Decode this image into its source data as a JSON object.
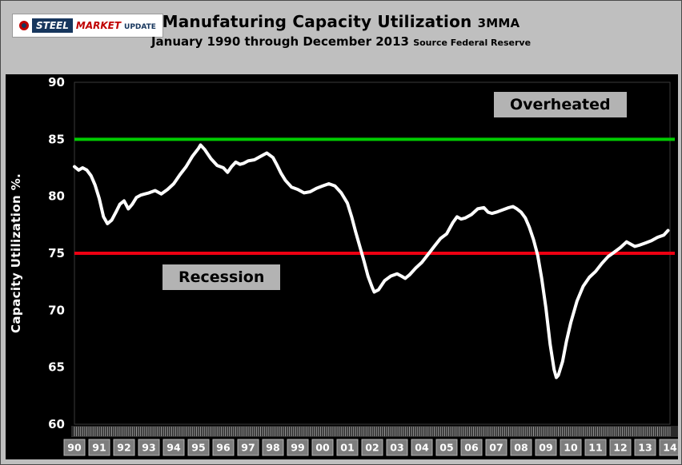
{
  "logo": {
    "steel": "STEEL",
    "market": "MARKET",
    "update": "UPDATE"
  },
  "header": {
    "title": "Manufaturing Capacity Utilization",
    "title_suffix": "3MMA",
    "subtitle": "January 1990 through December 2013",
    "subtitle_suffix": "Source Federal Reserve"
  },
  "colors": {
    "background": "#bfbfbf",
    "plot_background": "#000000",
    "series": "#ffffff",
    "overheated_line": "#00cc00",
    "recession_line": "#ee0012",
    "tick_text": "#ffffff",
    "annotation_box": "#b3b3b3"
  },
  "chart_data": {
    "type": "line",
    "title": "Manufaturing Capacity Utilization 3MMA",
    "subtitle": "January 1990 through December 2013 Source Federal Reserve",
    "xlabel": "",
    "ylabel": "Capacity Utilization %.",
    "ylim": [
      60,
      90
    ],
    "yticks": [
      90,
      85,
      80,
      75,
      70,
      65,
      60
    ],
    "x_range": [
      1990,
      2014
    ],
    "xticks": [
      "90",
      "91",
      "92",
      "93",
      "94",
      "95",
      "96",
      "97",
      "98",
      "99",
      "00",
      "01",
      "02",
      "03",
      "04",
      "05",
      "06",
      "07",
      "08",
      "09",
      "10",
      "11",
      "12",
      "13",
      "14"
    ],
    "grid": false,
    "legend": "none",
    "reference_lines": [
      {
        "value": 85,
        "color": "#00cc00",
        "label": "Overheated"
      },
      {
        "value": 75,
        "color": "#ee0012",
        "label": "Recession"
      }
    ],
    "annotations": [
      {
        "text": "Overheated",
        "position": "above green line, upper right"
      },
      {
        "text": "Recession",
        "position": "below red line, left-center"
      }
    ],
    "series": [
      {
        "name": "Manufacturing Capacity Utilization 3MMA",
        "color": "#ffffff",
        "points": [
          [
            1990.0,
            82.6
          ],
          [
            1990.17,
            82.3
          ],
          [
            1990.33,
            82.5
          ],
          [
            1990.5,
            82.3
          ],
          [
            1990.67,
            81.8
          ],
          [
            1990.83,
            81.0
          ],
          [
            1991.0,
            79.8
          ],
          [
            1991.17,
            78.2
          ],
          [
            1991.33,
            77.6
          ],
          [
            1991.5,
            77.9
          ],
          [
            1991.67,
            78.6
          ],
          [
            1991.83,
            79.3
          ],
          [
            1992.0,
            79.6
          ],
          [
            1992.17,
            78.9
          ],
          [
            1992.33,
            79.3
          ],
          [
            1992.5,
            79.9
          ],
          [
            1992.67,
            80.1
          ],
          [
            1992.83,
            80.2
          ],
          [
            1993.0,
            80.3
          ],
          [
            1993.25,
            80.5
          ],
          [
            1993.5,
            80.2
          ],
          [
            1993.75,
            80.6
          ],
          [
            1994.0,
            81.1
          ],
          [
            1994.25,
            81.9
          ],
          [
            1994.5,
            82.6
          ],
          [
            1994.75,
            83.5
          ],
          [
            1995.0,
            84.2
          ],
          [
            1995.08,
            84.5
          ],
          [
            1995.25,
            84.1
          ],
          [
            1995.5,
            83.3
          ],
          [
            1995.75,
            82.7
          ],
          [
            1996.0,
            82.5
          ],
          [
            1996.17,
            82.1
          ],
          [
            1996.33,
            82.6
          ],
          [
            1996.5,
            83.0
          ],
          [
            1996.67,
            82.8
          ],
          [
            1996.83,
            82.9
          ],
          [
            1997.0,
            83.1
          ],
          [
            1997.25,
            83.2
          ],
          [
            1997.5,
            83.5
          ],
          [
            1997.75,
            83.8
          ],
          [
            1998.0,
            83.4
          ],
          [
            1998.17,
            82.7
          ],
          [
            1998.33,
            82.0
          ],
          [
            1998.5,
            81.4
          ],
          [
            1998.75,
            80.8
          ],
          [
            1999.0,
            80.6
          ],
          [
            1999.25,
            80.3
          ],
          [
            1999.5,
            80.4
          ],
          [
            1999.75,
            80.7
          ],
          [
            2000.0,
            80.9
          ],
          [
            2000.25,
            81.1
          ],
          [
            2000.5,
            80.9
          ],
          [
            2000.75,
            80.3
          ],
          [
            2001.0,
            79.4
          ],
          [
            2001.17,
            78.2
          ],
          [
            2001.33,
            76.9
          ],
          [
            2001.5,
            75.6
          ],
          [
            2001.67,
            74.3
          ],
          [
            2001.83,
            73.0
          ],
          [
            2002.0,
            72.0
          ],
          [
            2002.08,
            71.6
          ],
          [
            2002.25,
            71.8
          ],
          [
            2002.5,
            72.6
          ],
          [
            2002.75,
            73.0
          ],
          [
            2003.0,
            73.2
          ],
          [
            2003.17,
            73.0
          ],
          [
            2003.33,
            72.8
          ],
          [
            2003.5,
            73.1
          ],
          [
            2003.75,
            73.7
          ],
          [
            2004.0,
            74.2
          ],
          [
            2004.25,
            74.9
          ],
          [
            2004.5,
            75.6
          ],
          [
            2004.75,
            76.3
          ],
          [
            2005.0,
            76.7
          ],
          [
            2005.25,
            77.7
          ],
          [
            2005.42,
            78.2
          ],
          [
            2005.58,
            78.0
          ],
          [
            2005.75,
            78.1
          ],
          [
            2006.0,
            78.4
          ],
          [
            2006.25,
            78.9
          ],
          [
            2006.5,
            79.0
          ],
          [
            2006.67,
            78.6
          ],
          [
            2006.83,
            78.5
          ],
          [
            2007.0,
            78.6
          ],
          [
            2007.25,
            78.8
          ],
          [
            2007.5,
            79.0
          ],
          [
            2007.67,
            79.1
          ],
          [
            2007.83,
            78.9
          ],
          [
            2008.0,
            78.6
          ],
          [
            2008.17,
            78.1
          ],
          [
            2008.33,
            77.3
          ],
          [
            2008.5,
            76.2
          ],
          [
            2008.67,
            74.8
          ],
          [
            2008.83,
            72.8
          ],
          [
            2009.0,
            70.2
          ],
          [
            2009.17,
            67.0
          ],
          [
            2009.33,
            64.8
          ],
          [
            2009.42,
            64.1
          ],
          [
            2009.5,
            64.3
          ],
          [
            2009.67,
            65.5
          ],
          [
            2009.83,
            67.3
          ],
          [
            2010.0,
            68.9
          ],
          [
            2010.25,
            70.8
          ],
          [
            2010.5,
            72.1
          ],
          [
            2010.75,
            72.9
          ],
          [
            2011.0,
            73.4
          ],
          [
            2011.25,
            74.1
          ],
          [
            2011.5,
            74.7
          ],
          [
            2011.75,
            75.1
          ],
          [
            2012.0,
            75.5
          ],
          [
            2012.25,
            76.0
          ],
          [
            2012.42,
            75.8
          ],
          [
            2012.58,
            75.6
          ],
          [
            2012.75,
            75.7
          ],
          [
            2013.0,
            75.9
          ],
          [
            2013.25,
            76.1
          ],
          [
            2013.5,
            76.4
          ],
          [
            2013.75,
            76.6
          ],
          [
            2013.92,
            77.0
          ]
        ]
      }
    ]
  }
}
